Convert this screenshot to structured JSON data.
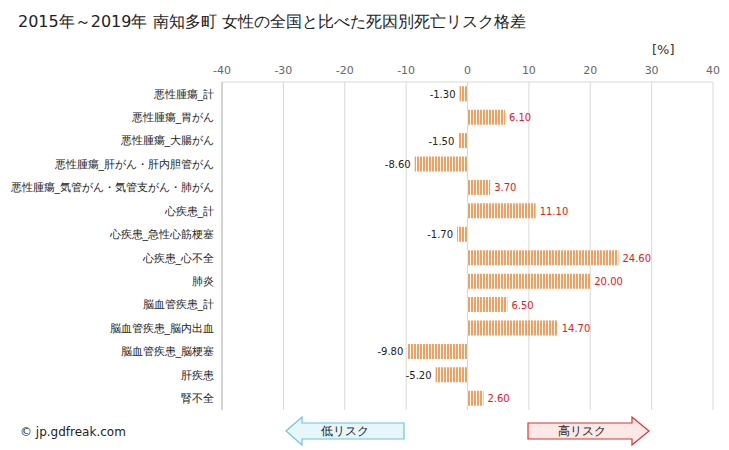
{
  "chart_data": {
    "type": "bar",
    "orientation": "horizontal",
    "title": "2015年～2019年 南知多町 女性の全国と比べた死因別死亡リスク格差",
    "xlabel": "[%]",
    "annotations": [
      "© jp.gdfreak.com",
      "低リスク",
      "高リスク"
    ],
    "categories": [
      "悪性腫瘍_計",
      "悪性腫瘍_胃がん",
      "悪性腫瘍_大腸がん",
      "悪性腫瘍_肝がん・肝内胆管がん",
      "悪性腫瘍_気管がん・気管支がん・肺がん",
      "心疾患_計",
      "心疾患_急性心筋梗塞",
      "心疾患_心不全",
      "肺炎",
      "脳血管疾患_計",
      "脳血管疾患_脳内出血",
      "脳血管疾患_脳梗塞",
      "肝疾患",
      "腎不全"
    ],
    "values": [
      -1.3,
      6.1,
      -1.5,
      -8.6,
      3.7,
      11.1,
      -1.7,
      24.6,
      20.0,
      6.5,
      14.7,
      -9.8,
      -5.2,
      2.6
    ],
    "value_labels": [
      "-1.30",
      "6.10",
      "-1.50",
      "-8.60",
      "3.70",
      "11.10",
      "-1.70",
      "24.60",
      "20.00",
      "6.50",
      "14.70",
      "-9.80",
      "-5.20",
      "2.60"
    ],
    "color": "#f0a060",
    "xlim": [
      -40,
      40
    ],
    "xticks": [
      -40,
      -30,
      -20,
      -10,
      0,
      10,
      20,
      30,
      40
    ],
    "grid": true,
    "data_labels": true
  }
}
